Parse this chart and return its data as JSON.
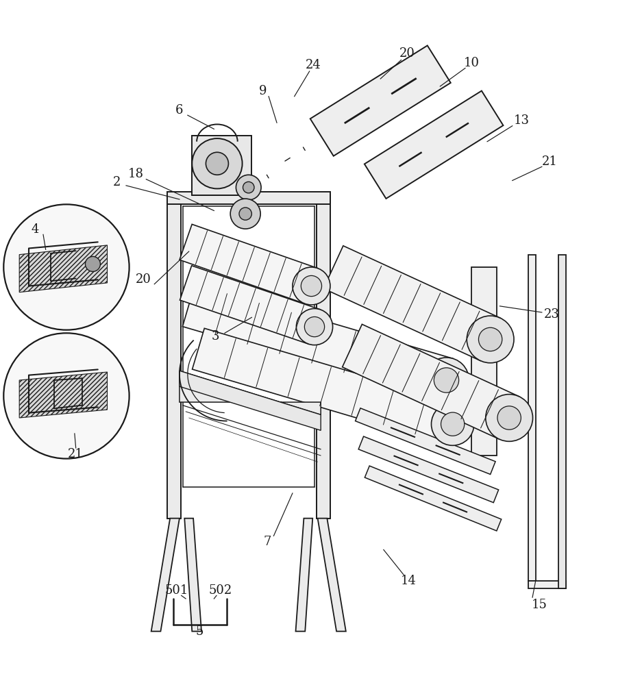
{
  "bg_color": "#ffffff",
  "line_color": "#1a1a1a",
  "fig_width": 9.18,
  "fig_height": 10.0,
  "dpi": 100
}
